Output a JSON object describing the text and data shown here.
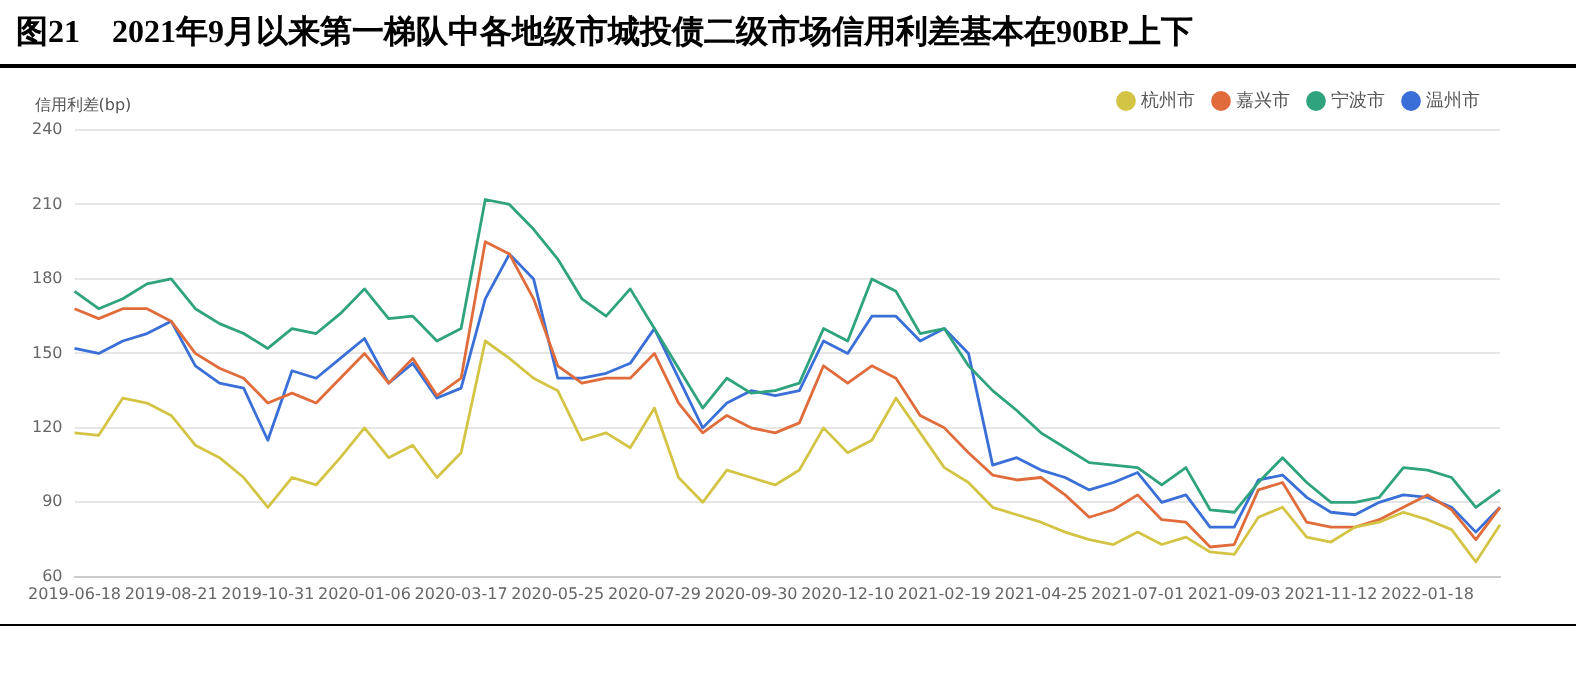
{
  "chart_data": {
    "type": "line",
    "title": "图21　2021年9月以来第一梯队中各地级市城投债二级市场信用利差基本在90BP上下",
    "ylabel": "信用利差(bp)",
    "categories": [
      "2019-06-18",
      null,
      null,
      null,
      "2019-08-21",
      null,
      null,
      null,
      "2019-10-31",
      null,
      null,
      null,
      "2020-01-06",
      null,
      null,
      null,
      "2020-03-17",
      null,
      null,
      null,
      "2020-05-25",
      null,
      null,
      null,
      "2020-07-29",
      null,
      null,
      null,
      "2020-09-30",
      null,
      null,
      null,
      "2020-12-10",
      null,
      null,
      null,
      "2021-02-19",
      null,
      null,
      null,
      "2021-04-25",
      null,
      null,
      null,
      "2021-07-01",
      null,
      null,
      null,
      "2021-09-03",
      null,
      null,
      null,
      "2021-11-12",
      null,
      null,
      null,
      "2022-01-18",
      null,
      null,
      null
    ],
    "series": [
      {
        "name": "杭州市",
        "color": "#d4c445",
        "values": [
          118,
          117,
          132,
          130,
          125,
          113,
          108,
          100,
          88,
          100,
          97,
          108,
          120,
          108,
          113,
          100,
          110,
          155,
          148,
          140,
          135,
          115,
          118,
          112,
          128,
          100,
          90,
          103,
          100,
          97,
          103,
          120,
          110,
          115,
          132,
          118,
          104,
          98,
          88,
          85,
          82,
          78,
          75,
          73,
          78,
          73,
          76,
          70,
          69,
          84,
          88,
          76,
          74,
          80,
          82,
          86,
          83,
          79,
          66,
          81
        ]
      },
      {
        "name": "嘉兴市",
        "color": "#e06c3c",
        "values": [
          168,
          164,
          168,
          168,
          163,
          150,
          144,
          140,
          130,
          134,
          130,
          140,
          150,
          138,
          148,
          133,
          140,
          195,
          190,
          172,
          145,
          138,
          140,
          140,
          150,
          130,
          118,
          125,
          120,
          118,
          122,
          145,
          138,
          145,
          140,
          125,
          120,
          110,
          101,
          99,
          100,
          93,
          84,
          87,
          93,
          83,
          82,
          72,
          73,
          95,
          98,
          82,
          80,
          80,
          83,
          88,
          93,
          87,
          75,
          88
        ]
      },
      {
        "name": "宁波市",
        "color": "#2fa37e",
        "values": [
          175,
          168,
          172,
          178,
          180,
          168,
          162,
          158,
          152,
          160,
          158,
          166,
          176,
          164,
          165,
          155,
          160,
          212,
          210,
          200,
          188,
          172,
          165,
          176,
          160,
          144,
          128,
          140,
          134,
          135,
          138,
          160,
          155,
          180,
          175,
          158,
          160,
          145,
          135,
          127,
          118,
          112,
          106,
          105,
          104,
          97,
          104,
          87,
          86,
          98,
          108,
          98,
          90,
          90,
          92,
          104,
          103,
          100,
          88,
          95
        ]
      },
      {
        "name": "温州市",
        "color": "#3a6fd8",
        "values": [
          152,
          150,
          155,
          158,
          163,
          145,
          138,
          136,
          115,
          143,
          140,
          148,
          156,
          138,
          146,
          132,
          136,
          172,
          190,
          180,
          140,
          140,
          142,
          146,
          160,
          140,
          120,
          130,
          135,
          133,
          135,
          155,
          150,
          165,
          165,
          155,
          160,
          150,
          105,
          108,
          103,
          100,
          95,
          98,
          102,
          90,
          93,
          80,
          80,
          99,
          101,
          92,
          86,
          85,
          90,
          93,
          92,
          88,
          78,
          88
        ]
      }
    ],
    "ylim": [
      60,
      240
    ],
    "yticks": [
      60,
      90,
      120,
      150,
      180,
      210,
      240
    ],
    "grid": "y",
    "legend": "top right",
    "marker": "none",
    "line_style": "solid"
  }
}
